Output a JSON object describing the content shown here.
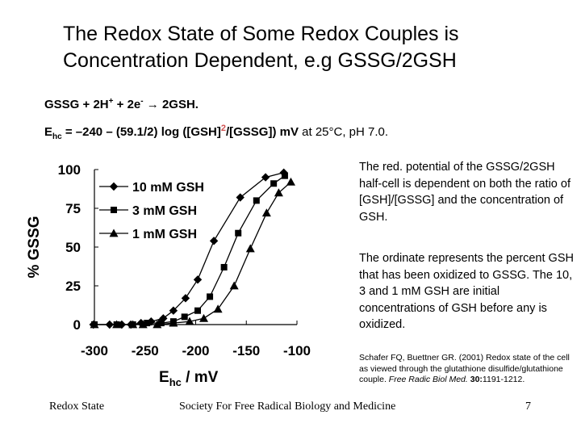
{
  "title": "The Redox State of Some Redox Couples is Concentration Dependent, e.g GSSG/2GSH",
  "equation1": {
    "left": "GSSG + 2H",
    "plus_sup": "+",
    "middle": " + 2e",
    "minus_sup": "-",
    "arrow": "→",
    "right": "2GSH."
  },
  "equation2": {
    "e": "E",
    "sub": "hc",
    "body": " = –240 – (59.1/2) log ([GSH]",
    "power": "2",
    "body2": "/[GSSG]) mV",
    "tail": " at 25°C, pH 7.0."
  },
  "side_note_1": "The red. potential of the GSSG/2GSH half-cell is dependent on both the ratio of [GSH]/[GSSG] and the concentration of GSH.",
  "side_note_2": "The ordinate represents the percent GSH that has been oxidized to GSSG. The 10, 3 and 1 mM GSH are initial concentrations of GSH before any is oxidized.",
  "reference": {
    "authors": "Schafer FQ, Buettner GR. (2001) Redox state of the cell as viewed through the glutathione disulfide/glutathione couple. ",
    "journal": "Free Radic Biol Med.",
    "volume": " 30:",
    "pages": "1191-1212."
  },
  "footer": {
    "left": "Redox State",
    "center": "Society For Free Radical Biology and Medicine",
    "page": "7"
  },
  "chart_data": {
    "type": "line",
    "xlabel_main": "E",
    "xlabel_sub": "hc",
    "xlabel_rest": " / mV",
    "ylabel": "% GSSG",
    "xlim": [
      -300,
      -100
    ],
    "ylim": [
      0,
      100
    ],
    "x_ticks": [
      -300,
      -250,
      -200,
      -150,
      -100
    ],
    "x_tick_labels": [
      "-300",
      "-250",
      "-200",
      "-150",
      "-100"
    ],
    "y_ticks": [
      0,
      25,
      50,
      75,
      100
    ],
    "y_tick_labels": [
      "0",
      "25",
      "50",
      "75",
      "100"
    ],
    "legend_position": "top-left",
    "series": [
      {
        "name": "10 mM GSH",
        "marker": "diamond",
        "points": [
          [
            -301,
            0
          ],
          [
            -285,
            0
          ],
          [
            -273,
            0
          ],
          [
            -264,
            0
          ],
          [
            -254,
            1
          ],
          [
            -244,
            2
          ],
          [
            -232,
            4
          ],
          [
            -222,
            9
          ],
          [
            -210,
            17
          ],
          [
            -198,
            29
          ],
          [
            -182,
            54
          ],
          [
            -156,
            82
          ],
          [
            -131,
            95
          ],
          [
            -113,
            98
          ]
        ]
      },
      {
        "name": "3 mM GSH",
        "marker": "square",
        "points": [
          [
            -300,
            0
          ],
          [
            -278,
            0
          ],
          [
            -262,
            0
          ],
          [
            -248,
            1
          ],
          [
            -234,
            1
          ],
          [
            -222,
            2
          ],
          [
            -211,
            5
          ],
          [
            -198,
            9
          ],
          [
            -186,
            18
          ],
          [
            -172,
            37
          ],
          [
            -158,
            59
          ],
          [
            -140,
            80
          ],
          [
            -123,
            91
          ],
          [
            -112,
            96
          ]
        ]
      },
      {
        "name": "1 mM GSH",
        "marker": "triangle",
        "points": [
          [
            -300,
            0
          ],
          [
            -278,
            0
          ],
          [
            -262,
            0
          ],
          [
            -252,
            0
          ],
          [
            -238,
            0
          ],
          [
            -222,
            1
          ],
          [
            -206,
            2
          ],
          [
            -192,
            4
          ],
          [
            -178,
            10
          ],
          [
            -162,
            25
          ],
          [
            -146,
            49
          ],
          [
            -130,
            72
          ],
          [
            -118,
            85
          ],
          [
            -106,
            92
          ]
        ]
      }
    ]
  }
}
